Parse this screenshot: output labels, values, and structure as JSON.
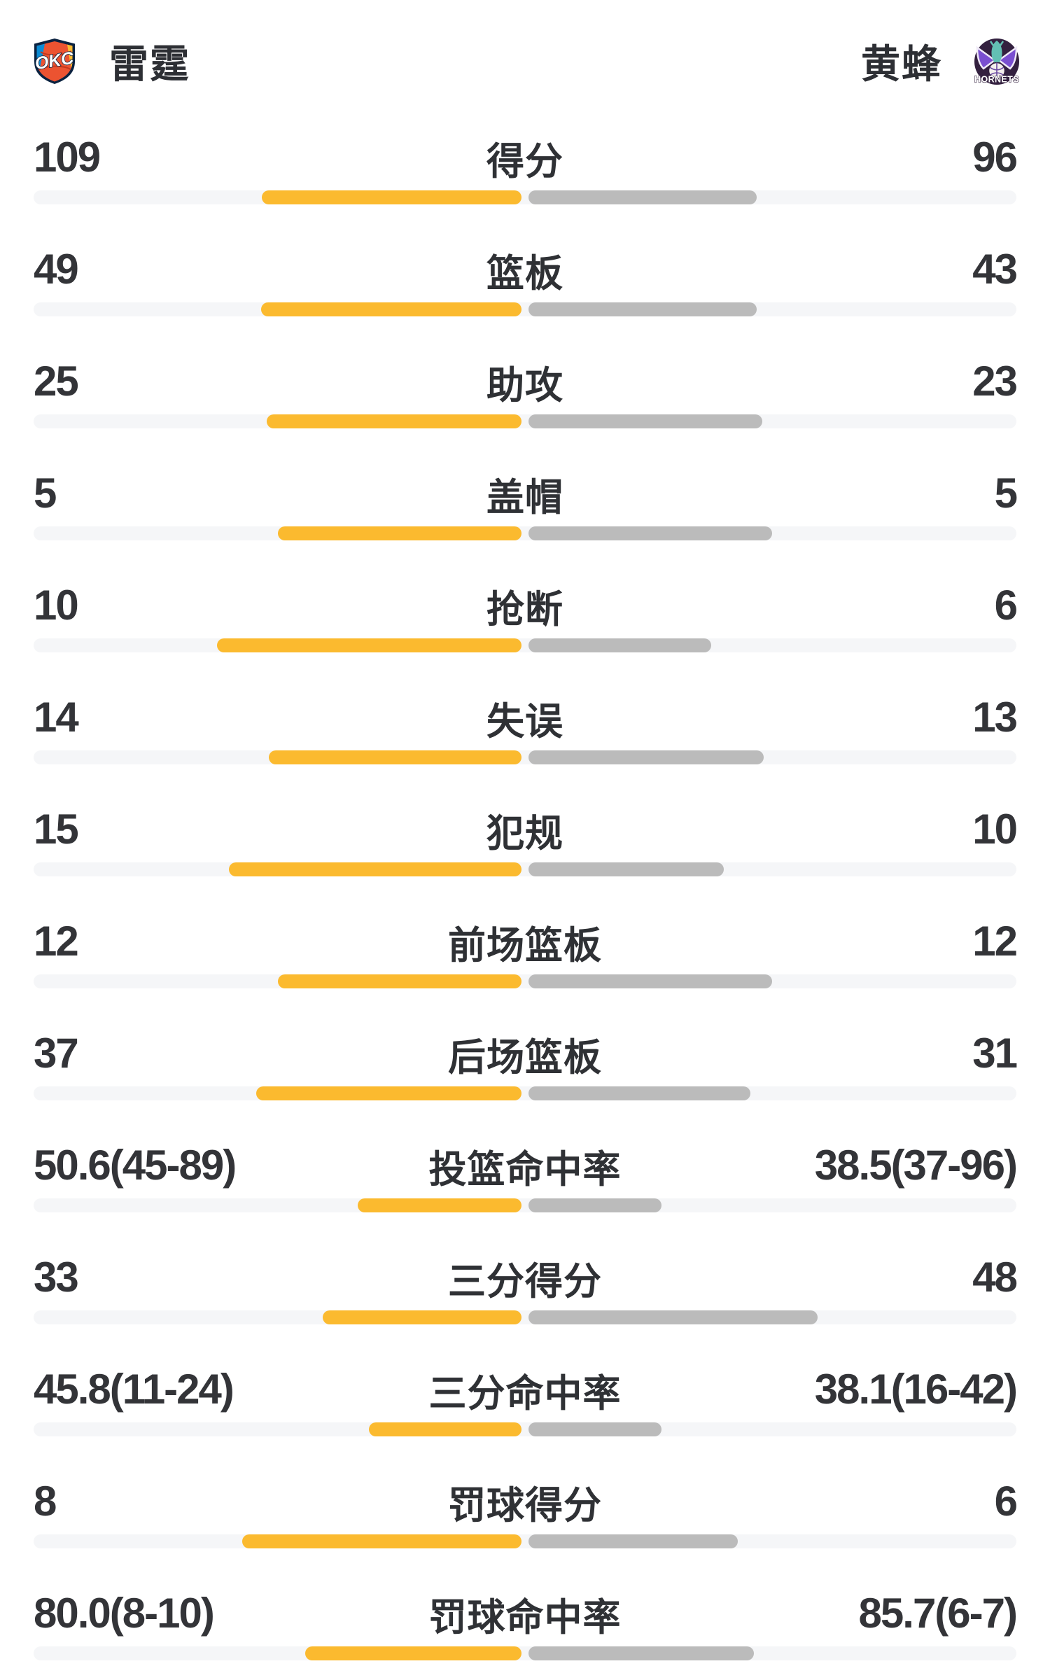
{
  "header": {
    "left_team": {
      "name": "雷霆",
      "logo_icon": "okc-thunder-logo",
      "logo_text": "OKC"
    },
    "right_team": {
      "name": "黄蜂",
      "logo_icon": "charlotte-hornets-logo",
      "logo_text": "HORNETS"
    }
  },
  "colors": {
    "left_bar": "#FBBA2F",
    "right_bar": "#BBBBBB",
    "track": "#F5F6F8",
    "value_text": "#333438"
  },
  "chart_data": {
    "type": "bar",
    "teams": [
      "雷霆",
      "黄蜂"
    ],
    "layout": {
      "orientation": "horizontal-paired",
      "bars_grow_from_center": true,
      "left_color": "#FBBA2F",
      "right_color": "#BBBBBB",
      "track_color": "#F5F6F8"
    },
    "rows": [
      {
        "label": "得分",
        "left": "109",
        "right": "96",
        "left_bar_pct": 26.4,
        "right_bar_pct": 23.2
      },
      {
        "label": "篮板",
        "left": "49",
        "right": "43",
        "left_bar_pct": 26.5,
        "right_bar_pct": 23.2
      },
      {
        "label": "助攻",
        "left": "25",
        "right": "23",
        "left_bar_pct": 25.9,
        "right_bar_pct": 23.8
      },
      {
        "label": "盖帽",
        "left": "5",
        "right": "5",
        "left_bar_pct": 24.8,
        "right_bar_pct": 24.8
      },
      {
        "label": "抢断",
        "left": "10",
        "right": "6",
        "left_bar_pct": 31.0,
        "right_bar_pct": 18.6
      },
      {
        "label": "失误",
        "left": "14",
        "right": "13",
        "left_bar_pct": 25.7,
        "right_bar_pct": 23.9
      },
      {
        "label": "犯规",
        "left": "15",
        "right": "10",
        "left_bar_pct": 29.8,
        "right_bar_pct": 19.9
      },
      {
        "label": "前场篮板",
        "left": "12",
        "right": "12",
        "left_bar_pct": 24.8,
        "right_bar_pct": 24.8
      },
      {
        "label": "后场篮板",
        "left": "37",
        "right": "31",
        "left_bar_pct": 27.0,
        "right_bar_pct": 22.6
      },
      {
        "label": "投篮命中率",
        "left": "50.6(45-89)",
        "right": "38.5(37-96)",
        "left_bar_pct": 16.7,
        "right_bar_pct": 13.5
      },
      {
        "label": "三分得分",
        "left": "33",
        "right": "48",
        "left_bar_pct": 20.2,
        "right_bar_pct": 29.4
      },
      {
        "label": "三分命中率",
        "left": "45.8(11-24)",
        "right": "38.1(16-42)",
        "left_bar_pct": 15.5,
        "right_bar_pct": 13.5
      },
      {
        "label": "罚球得分",
        "left": "8",
        "right": "6",
        "left_bar_pct": 28.4,
        "right_bar_pct": 21.3
      },
      {
        "label": "罚球命中率",
        "left": "80.0(8-10)",
        "right": "85.7(6-7)",
        "left_bar_pct": 22.0,
        "right_bar_pct": 22.9
      }
    ]
  }
}
